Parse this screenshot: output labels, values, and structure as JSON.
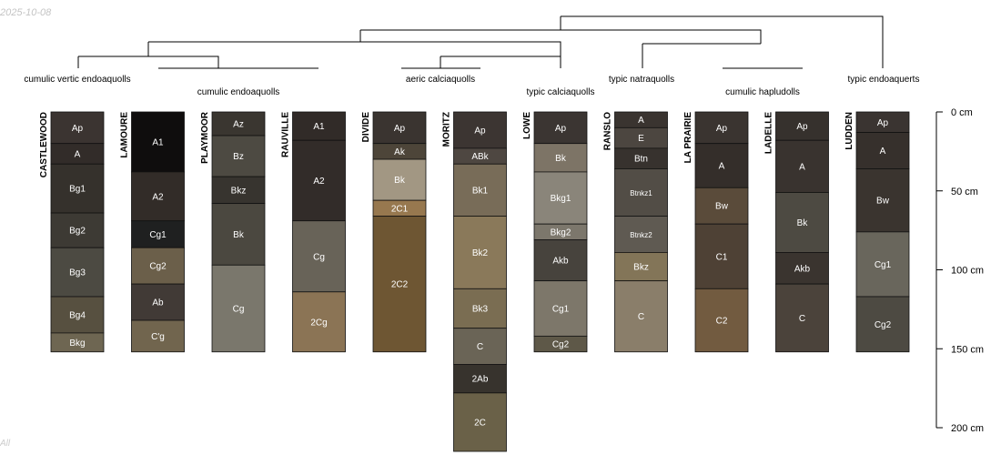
{
  "stamp_date": "2025-10-08",
  "stamp_corner": "All",
  "depth_axis": {
    "ticks": [
      {
        "depth": 0,
        "label": "0 cm"
      },
      {
        "depth": 50,
        "label": "50 cm"
      },
      {
        "depth": 100,
        "label": "100 cm"
      },
      {
        "depth": 150,
        "label": "150 cm"
      },
      {
        "depth": 200,
        "label": "200 cm"
      }
    ]
  },
  "taxa": [
    {
      "id": "t1",
      "label": "cumulic vertic endoaquolls"
    },
    {
      "id": "t2",
      "label": "cumulic endoaquolls"
    },
    {
      "id": "t3",
      "label": "aeric calciaquolls"
    },
    {
      "id": "t4",
      "label": "typic calciaquolls"
    },
    {
      "id": "t5",
      "label": "typic natraquolls"
    },
    {
      "id": "t6",
      "label": "cumulic hapludolls"
    },
    {
      "id": "t7",
      "label": "typic endoaquerts"
    }
  ],
  "profiles": [
    {
      "name": "CASTLEWOOD",
      "horizons": [
        {
          "name": "Ap",
          "top": 0,
          "bottom": 20,
          "color": "#3b3431"
        },
        {
          "name": "A",
          "top": 20,
          "bottom": 33,
          "color": "#322c29"
        },
        {
          "name": "Bg1",
          "top": 33,
          "bottom": 64,
          "color": "#35312c"
        },
        {
          "name": "Bg2",
          "top": 64,
          "bottom": 86,
          "color": "#3d3a34"
        },
        {
          "name": "Bg3",
          "top": 86,
          "bottom": 117,
          "color": "#4c4a42"
        },
        {
          "name": "Bg4",
          "top": 117,
          "bottom": 140,
          "color": "#575040"
        },
        {
          "name": "Bkg",
          "top": 140,
          "bottom": 152,
          "color": "#6e6652"
        }
      ]
    },
    {
      "name": "LAMOURE",
      "horizons": [
        {
          "name": "A1",
          "top": 0,
          "bottom": 38,
          "color": "#0f0d0d"
        },
        {
          "name": "A2",
          "top": 38,
          "bottom": 69,
          "color": "#322c28"
        },
        {
          "name": "Cg1",
          "top": 69,
          "bottom": 86,
          "color": "#1f2020"
        },
        {
          "name": "Cg2",
          "top": 86,
          "bottom": 109,
          "color": "#6b5f4a"
        },
        {
          "name": "Ab",
          "top": 109,
          "bottom": 132,
          "color": "#413a36"
        },
        {
          "name": "C'g",
          "top": 132,
          "bottom": 152,
          "color": "#71654e"
        }
      ]
    },
    {
      "name": "PLAYMOOR",
      "horizons": [
        {
          "name": "Az",
          "top": 0,
          "bottom": 15,
          "color": "#3a3630"
        },
        {
          "name": "Bz",
          "top": 15,
          "bottom": 41,
          "color": "#4d4a42"
        },
        {
          "name": "Bkz",
          "top": 41,
          "bottom": 58,
          "color": "#37342f"
        },
        {
          "name": "Bk",
          "top": 58,
          "bottom": 97,
          "color": "#4b4840"
        },
        {
          "name": "Cg",
          "top": 97,
          "bottom": 152,
          "color": "#7a776c"
        }
      ]
    },
    {
      "name": "RAUVILLE",
      "horizons": [
        {
          "name": "A1",
          "top": 0,
          "bottom": 18,
          "color": "#312b28"
        },
        {
          "name": "A2",
          "top": 18,
          "bottom": 69,
          "color": "#322c29"
        },
        {
          "name": "Cg",
          "top": 69,
          "bottom": 114,
          "color": "#686358"
        },
        {
          "name": "2Cg",
          "top": 114,
          "bottom": 152,
          "color": "#8b7455"
        }
      ]
    },
    {
      "name": "DIVIDE",
      "horizons": [
        {
          "name": "Ap",
          "top": 0,
          "bottom": 20,
          "color": "#3a3430"
        },
        {
          "name": "Ak",
          "top": 20,
          "bottom": 30,
          "color": "#4d4539"
        },
        {
          "name": "Bk",
          "top": 30,
          "bottom": 56,
          "color": "#a29783"
        },
        {
          "name": "2C1",
          "top": 56,
          "bottom": 66,
          "color": "#97784f"
        },
        {
          "name": "2C2",
          "top": 66,
          "bottom": 152,
          "color": "#6e5633"
        }
      ]
    },
    {
      "name": "MORITZ",
      "horizons": [
        {
          "name": "Ap",
          "top": 0,
          "bottom": 23,
          "color": "#3c3532"
        },
        {
          "name": "ABk",
          "top": 23,
          "bottom": 33,
          "color": "#4e4741"
        },
        {
          "name": "Bk1",
          "top": 33,
          "bottom": 66,
          "color": "#786c58"
        },
        {
          "name": "Bk2",
          "top": 66,
          "bottom": 112,
          "color": "#8a795a"
        },
        {
          "name": "Bk3",
          "top": 112,
          "bottom": 137,
          "color": "#7a6d52"
        },
        {
          "name": "C",
          "top": 137,
          "bottom": 160,
          "color": "#6a6456"
        },
        {
          "name": "2Ab",
          "top": 160,
          "bottom": 178,
          "color": "#37332d"
        },
        {
          "name": "2C",
          "top": 178,
          "bottom": 215,
          "color": "#6a6148"
        }
      ]
    },
    {
      "name": "LOWE",
      "horizons": [
        {
          "name": "Ap",
          "top": 0,
          "bottom": 20,
          "color": "#3b3532"
        },
        {
          "name": "Bk",
          "top": 20,
          "bottom": 38,
          "color": "#7d7466"
        },
        {
          "name": "Bkg1",
          "top": 38,
          "bottom": 71,
          "color": "#8a857a"
        },
        {
          "name": "Bkg2",
          "top": 71,
          "bottom": 81,
          "color": "#7c776c"
        },
        {
          "name": "Akb",
          "top": 81,
          "bottom": 107,
          "color": "#47433d"
        },
        {
          "name": "Cg1",
          "top": 107,
          "bottom": 142,
          "color": "#7d776a"
        },
        {
          "name": "Cg2",
          "top": 142,
          "bottom": 152,
          "color": "#5e5848"
        }
      ]
    },
    {
      "name": "RANSLO",
      "horizons": [
        {
          "name": "A",
          "top": 0,
          "bottom": 10,
          "color": "#3a3430"
        },
        {
          "name": "E",
          "top": 10,
          "bottom": 23,
          "color": "#4c4640"
        },
        {
          "name": "Btn",
          "top": 23,
          "bottom": 36,
          "color": "#37322e"
        },
        {
          "name": "Btnkz1",
          "top": 36,
          "bottom": 66,
          "color": "#524d46"
        },
        {
          "name": "Btnkz2",
          "top": 66,
          "bottom": 89,
          "color": "#5f5a52"
        },
        {
          "name": "Bkz",
          "top": 89,
          "bottom": 107,
          "color": "#837558"
        },
        {
          "name": "C",
          "top": 107,
          "bottom": 152,
          "color": "#8a7e6a"
        }
      ]
    },
    {
      "name": "LA PRAIRIE",
      "horizons": [
        {
          "name": "Ap",
          "top": 0,
          "bottom": 20,
          "color": "#3a3430"
        },
        {
          "name": "A",
          "top": 20,
          "bottom": 48,
          "color": "#342e2a"
        },
        {
          "name": "Bw",
          "top": 48,
          "bottom": 71,
          "color": "#5a4b3a"
        },
        {
          "name": "C1",
          "top": 71,
          "bottom": 112,
          "color": "#4e4135"
        },
        {
          "name": "C2",
          "top": 112,
          "bottom": 152,
          "color": "#725b40"
        }
      ]
    },
    {
      "name": "LADELLE",
      "horizons": [
        {
          "name": "Ap",
          "top": 0,
          "bottom": 18,
          "color": "#36312d"
        },
        {
          "name": "A",
          "top": 18,
          "bottom": 51,
          "color": "#39332f"
        },
        {
          "name": "Bk",
          "top": 51,
          "bottom": 89,
          "color": "#4d4a42"
        },
        {
          "name": "Akb",
          "top": 89,
          "bottom": 109,
          "color": "#3a342f"
        },
        {
          "name": "C",
          "top": 109,
          "bottom": 152,
          "color": "#4b433b"
        }
      ]
    },
    {
      "name": "LUDDEN",
      "horizons": [
        {
          "name": "Ap",
          "top": 0,
          "bottom": 13,
          "color": "#3a3431"
        },
        {
          "name": "A",
          "top": 13,
          "bottom": 36,
          "color": "#36302c"
        },
        {
          "name": "Bw",
          "top": 36,
          "bottom": 76,
          "color": "#3a342f"
        },
        {
          "name": "Cg1",
          "top": 76,
          "bottom": 117,
          "color": "#69665c"
        },
        {
          "name": "Cg2",
          "top": 117,
          "bottom": 152,
          "color": "#4d4a42"
        }
      ]
    }
  ]
}
